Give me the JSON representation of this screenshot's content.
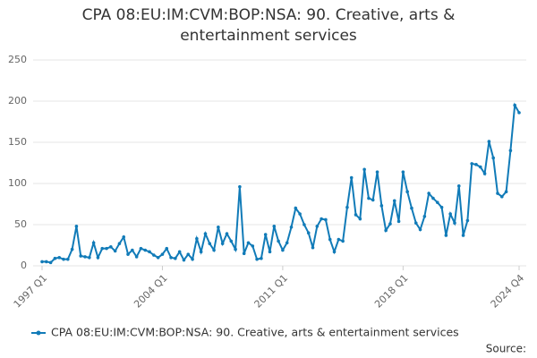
{
  "chart_data": {
    "type": "line",
    "title": "CPA 08:EU:IM:CVM:BOP:NSA: 90. Creative, arts & entertainment services",
    "source": "Source:",
    "categories": [
      "1997 Q1",
      null,
      null,
      null,
      null,
      null,
      null,
      null,
      null,
      null,
      null,
      null,
      null,
      null,
      null,
      null,
      null,
      null,
      null,
      null,
      null,
      null,
      null,
      null,
      null,
      null,
      null,
      null,
      "2004 Q1",
      null,
      null,
      null,
      null,
      null,
      null,
      null,
      null,
      null,
      null,
      null,
      null,
      null,
      null,
      null,
      null,
      null,
      null,
      null,
      null,
      null,
      null,
      null,
      null,
      null,
      null,
      null,
      "2011 Q1",
      null,
      null,
      null,
      null,
      null,
      null,
      null,
      null,
      null,
      null,
      null,
      null,
      null,
      null,
      null,
      null,
      null,
      null,
      null,
      null,
      null,
      null,
      null,
      null,
      null,
      null,
      null,
      "2018 Q1",
      null,
      null,
      null,
      null,
      null,
      null,
      null,
      null,
      null,
      null,
      null,
      null,
      null,
      null,
      null,
      null,
      null,
      null,
      null,
      null,
      null,
      null,
      null,
      null,
      null,
      null,
      "2024 Q4"
    ],
    "series": [
      {
        "name": "CPA 08:EU:IM:CVM:BOP:NSA: 90. Creative, arts & entertainment services",
        "color": "#117bb8",
        "values": [
          5,
          5,
          4,
          9,
          10,
          8,
          8,
          20,
          48,
          12,
          11,
          10,
          28,
          10,
          21,
          21,
          23,
          18,
          27,
          35,
          14,
          19,
          11,
          21,
          19,
          17,
          13,
          10,
          14,
          21,
          10,
          9,
          17,
          7,
          14,
          8,
          33,
          17,
          39,
          27,
          19,
          47,
          27,
          39,
          30,
          20,
          96,
          15,
          28,
          24,
          8,
          9,
          38,
          17,
          48,
          30,
          19,
          28,
          47,
          70,
          63,
          50,
          40,
          22,
          48,
          57,
          56,
          32,
          17,
          32,
          30,
          71,
          107,
          62,
          57,
          117,
          82,
          80,
          114,
          73,
          43,
          51,
          79,
          54,
          114,
          90,
          70,
          52,
          44,
          60,
          88,
          82,
          77,
          71,
          37,
          63,
          52,
          97,
          37,
          55,
          124,
          123,
          120,
          112,
          151,
          131,
          88,
          84,
          90,
          140,
          195,
          186
        ]
      }
    ],
    "ylim": [
      0,
      250
    ],
    "yticks": [
      0,
      50,
      100,
      150,
      200,
      250
    ],
    "grid": true
  }
}
